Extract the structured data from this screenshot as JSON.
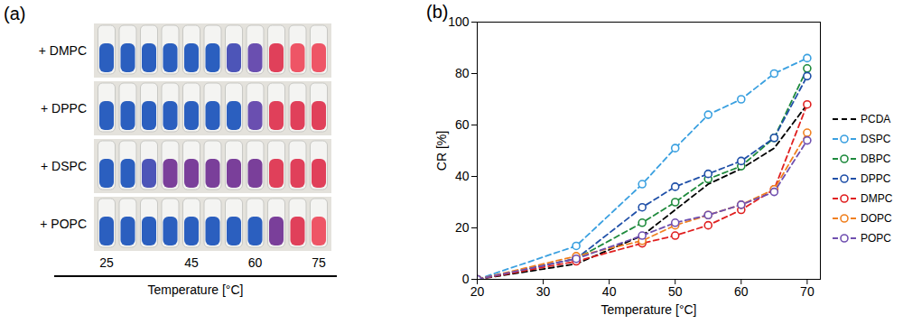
{
  "chart_data": {
    "type": "line",
    "title": "(b)",
    "x_label": "Temperature [°C]",
    "y_label": "CR [%]",
    "x": [
      20,
      35,
      45,
      50,
      55,
      60,
      65,
      70
    ],
    "series": [
      {
        "name": "PCDA",
        "color": "#000000",
        "marker": "none",
        "line_style": "dashed",
        "values": [
          0,
          6,
          17,
          27,
          37,
          43,
          51,
          68
        ]
      },
      {
        "name": "DSPC",
        "color": "#3aa0e0",
        "marker": "circle",
        "line_style": "dashed",
        "values": [
          0,
          13,
          37,
          51,
          64,
          70,
          80,
          86
        ]
      },
      {
        "name": "DBPC",
        "color": "#1e8a3c",
        "marker": "circle",
        "line_style": "dashed",
        "values": [
          0,
          8,
          22,
          30,
          39,
          44,
          55,
          82
        ]
      },
      {
        "name": "DPPC",
        "color": "#2050a8",
        "marker": "circle",
        "line_style": "dashed",
        "values": [
          0,
          8,
          28,
          36,
          41,
          46,
          55,
          79
        ]
      },
      {
        "name": "DMPC",
        "color": "#e02020",
        "marker": "circle",
        "line_style": "dashed",
        "values": [
          0,
          7,
          14,
          17,
          21,
          27,
          35,
          68
        ]
      },
      {
        "name": "DOPC",
        "color": "#f08020",
        "marker": "circle",
        "line_style": "dashed",
        "values": [
          0,
          9,
          15,
          21,
          25,
          29,
          35,
          57
        ]
      },
      {
        "name": "POPC",
        "color": "#7050b0",
        "marker": "circle",
        "line_style": "dashed",
        "values": [
          0,
          8,
          17,
          22,
          25,
          29,
          34,
          54
        ]
      }
    ],
    "xlim": [
      20,
      72
    ],
    "xticks": [
      20,
      30,
      40,
      50,
      60,
      70
    ],
    "ylim": [
      0,
      100
    ],
    "yticks": [
      0,
      20,
      40,
      60,
      80,
      100
    ],
    "grid": false,
    "legend": "right"
  },
  "tube_panel": {
    "title": "(a)",
    "axis_label": "Temperature [°C]",
    "temperatures": [
      25,
      30,
      35,
      40,
      45,
      50,
      55,
      60,
      65,
      70,
      75
    ],
    "ticks": [
      25,
      45,
      60,
      75
    ],
    "rows": [
      {
        "label": "+ DMPC",
        "colors": [
          "#2b5fbf",
          "#2b5fbf",
          "#2b5fbf",
          "#2b5fbf",
          "#2b5fbf",
          "#2b5fbf",
          "#4d55b8",
          "#6a4fb0",
          "#e0405a",
          "#ee5566",
          "#ee5566"
        ]
      },
      {
        "label": "+ DPPC",
        "colors": [
          "#2b5fbf",
          "#2b5fbf",
          "#2b5fbf",
          "#2b5fbf",
          "#2b5fbf",
          "#2b5fbf",
          "#2b5fbf",
          "#6a4fb0",
          "#e0405a",
          "#e0405a",
          "#e0405a"
        ]
      },
      {
        "label": "+ DSPC",
        "colors": [
          "#2b5fbf",
          "#2b5fbf",
          "#4d55b8",
          "#7a3f9a",
          "#7a3f9a",
          "#7a3f9a",
          "#7a3f9a",
          "#7a3f9a",
          "#e0405a",
          "#e0405a",
          "#e0405a"
        ]
      },
      {
        "label": "+ POPC",
        "colors": [
          "#2b5fbf",
          "#2b5fbf",
          "#2b5fbf",
          "#2b5fbf",
          "#2b5fbf",
          "#2b5fbf",
          "#2b5fbf",
          "#2b5fbf",
          "#7a3f9a",
          "#e0405a",
          "#ee5566"
        ]
      }
    ]
  }
}
